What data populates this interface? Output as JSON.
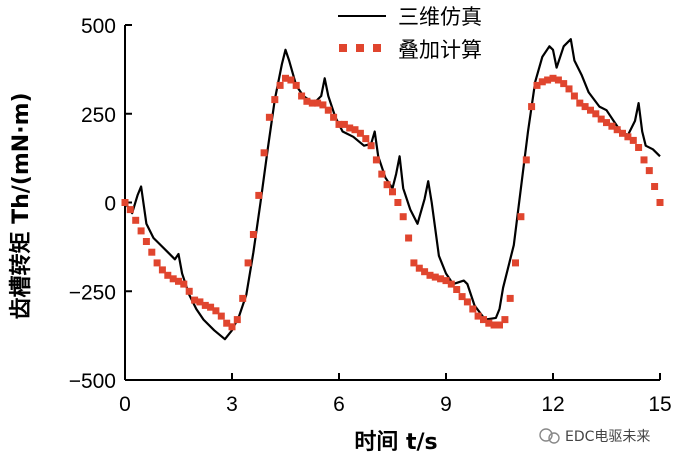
{
  "chart_data": {
    "type": "line",
    "xlabel": "时间 t/s",
    "ylabel": "齿槽转矩 Th/(mN·m)",
    "x_ticks": [
      "0",
      "3",
      "6",
      "9",
      "12",
      "15"
    ],
    "y_ticks": [
      "500",
      "250",
      "0",
      "−250",
      "−500"
    ],
    "xlim": [
      0,
      15
    ],
    "ylim": [
      -500,
      500
    ],
    "grid": false,
    "legend_position": "top-right",
    "series": [
      {
        "name": "三维仿真",
        "style": "line",
        "color": "#000000",
        "points": [
          [
            0.0,
            0
          ],
          [
            0.2,
            -30
          ],
          [
            0.35,
            20
          ],
          [
            0.45,
            45
          ],
          [
            0.6,
            -60
          ],
          [
            0.8,
            -100
          ],
          [
            1.0,
            -120
          ],
          [
            1.2,
            -140
          ],
          [
            1.4,
            -160
          ],
          [
            1.5,
            -145
          ],
          [
            1.6,
            -200
          ],
          [
            1.8,
            -260
          ],
          [
            2.0,
            -300
          ],
          [
            2.2,
            -330
          ],
          [
            2.5,
            -360
          ],
          [
            2.8,
            -385
          ],
          [
            3.0,
            -360
          ],
          [
            3.2,
            -320
          ],
          [
            3.4,
            -260
          ],
          [
            3.6,
            -140
          ],
          [
            3.8,
            0
          ],
          [
            4.0,
            150
          ],
          [
            4.2,
            290
          ],
          [
            4.4,
            390
          ],
          [
            4.5,
            430
          ],
          [
            4.6,
            400
          ],
          [
            4.8,
            330
          ],
          [
            5.0,
            300
          ],
          [
            5.3,
            280
          ],
          [
            5.5,
            300
          ],
          [
            5.6,
            350
          ],
          [
            5.7,
            300
          ],
          [
            5.9,
            240
          ],
          [
            6.1,
            200
          ],
          [
            6.4,
            185
          ],
          [
            6.7,
            160
          ],
          [
            6.9,
            165
          ],
          [
            7.0,
            200
          ],
          [
            7.1,
            130
          ],
          [
            7.3,
            70
          ],
          [
            7.5,
            40
          ],
          [
            7.6,
            80
          ],
          [
            7.7,
            130
          ],
          [
            7.8,
            40
          ],
          [
            8.0,
            -20
          ],
          [
            8.2,
            -60
          ],
          [
            8.4,
            10
          ],
          [
            8.5,
            60
          ],
          [
            8.6,
            0
          ],
          [
            8.8,
            -150
          ],
          [
            9.0,
            -200
          ],
          [
            9.2,
            -230
          ],
          [
            9.5,
            -220
          ],
          [
            9.6,
            -230
          ],
          [
            9.8,
            -290
          ],
          [
            10.1,
            -330
          ],
          [
            10.4,
            -325
          ],
          [
            10.5,
            -300
          ],
          [
            10.6,
            -240
          ],
          [
            10.9,
            -120
          ],
          [
            11.1,
            40
          ],
          [
            11.3,
            200
          ],
          [
            11.5,
            340
          ],
          [
            11.7,
            410
          ],
          [
            11.9,
            440
          ],
          [
            12.0,
            430
          ],
          [
            12.1,
            380
          ],
          [
            12.3,
            440
          ],
          [
            12.5,
            460
          ],
          [
            12.6,
            400
          ],
          [
            12.8,
            360
          ],
          [
            13.0,
            310
          ],
          [
            13.3,
            270
          ],
          [
            13.5,
            260
          ],
          [
            13.7,
            230
          ],
          [
            13.9,
            200
          ],
          [
            14.1,
            190
          ],
          [
            14.3,
            230
          ],
          [
            14.4,
            280
          ],
          [
            14.5,
            200
          ],
          [
            14.6,
            160
          ],
          [
            14.8,
            150
          ],
          [
            15.0,
            130
          ]
        ]
      },
      {
        "name": "叠加计算",
        "style": "marker",
        "color": "#e0452e",
        "points": [
          [
            0.0,
            0
          ],
          [
            0.15,
            -20
          ],
          [
            0.3,
            -50
          ],
          [
            0.45,
            -80
          ],
          [
            0.6,
            -110
          ],
          [
            0.75,
            -140
          ],
          [
            0.9,
            -170
          ],
          [
            1.05,
            -190
          ],
          [
            1.2,
            -205
          ],
          [
            1.35,
            -215
          ],
          [
            1.5,
            -222
          ],
          [
            1.65,
            -230
          ],
          [
            1.8,
            -250
          ],
          [
            1.95,
            -275
          ],
          [
            2.1,
            -280
          ],
          [
            2.25,
            -290
          ],
          [
            2.4,
            -295
          ],
          [
            2.55,
            -305
          ],
          [
            2.7,
            -320
          ],
          [
            2.85,
            -340
          ],
          [
            3.0,
            -350
          ],
          [
            3.15,
            -330
          ],
          [
            3.3,
            -270
          ],
          [
            3.45,
            -170
          ],
          [
            3.6,
            -90
          ],
          [
            3.75,
            20
          ],
          [
            3.9,
            140
          ],
          [
            4.05,
            240
          ],
          [
            4.2,
            290
          ],
          [
            4.35,
            330
          ],
          [
            4.5,
            350
          ],
          [
            4.65,
            345
          ],
          [
            4.8,
            330
          ],
          [
            4.95,
            300
          ],
          [
            5.1,
            285
          ],
          [
            5.25,
            280
          ],
          [
            5.4,
            280
          ],
          [
            5.55,
            275
          ],
          [
            5.7,
            260
          ],
          [
            5.85,
            240
          ],
          [
            6.0,
            220
          ],
          [
            6.15,
            220
          ],
          [
            6.3,
            210
          ],
          [
            6.45,
            205
          ],
          [
            6.6,
            195
          ],
          [
            6.75,
            180
          ],
          [
            6.9,
            160
          ],
          [
            7.05,
            120
          ],
          [
            7.2,
            80
          ],
          [
            7.35,
            50
          ],
          [
            7.5,
            30
          ],
          [
            7.65,
            0
          ],
          [
            7.8,
            -40
          ],
          [
            7.95,
            -100
          ],
          [
            8.1,
            -170
          ],
          [
            8.25,
            -185
          ],
          [
            8.4,
            -195
          ],
          [
            8.55,
            -205
          ],
          [
            8.7,
            -210
          ],
          [
            8.85,
            -215
          ],
          [
            9.0,
            -220
          ],
          [
            9.15,
            -230
          ],
          [
            9.3,
            -245
          ],
          [
            9.45,
            -265
          ],
          [
            9.6,
            -280
          ],
          [
            9.75,
            -300
          ],
          [
            9.9,
            -320
          ],
          [
            10.05,
            -330
          ],
          [
            10.2,
            -340
          ],
          [
            10.35,
            -345
          ],
          [
            10.5,
            -345
          ],
          [
            10.65,
            -330
          ],
          [
            10.8,
            -270
          ],
          [
            10.95,
            -170
          ],
          [
            11.1,
            -40
          ],
          [
            11.25,
            120
          ],
          [
            11.4,
            270
          ],
          [
            11.55,
            330
          ],
          [
            11.7,
            340
          ],
          [
            11.85,
            345
          ],
          [
            12.0,
            350
          ],
          [
            12.15,
            345
          ],
          [
            12.3,
            335
          ],
          [
            12.45,
            320
          ],
          [
            12.6,
            300
          ],
          [
            12.75,
            280
          ],
          [
            12.9,
            270
          ],
          [
            13.05,
            260
          ],
          [
            13.2,
            250
          ],
          [
            13.35,
            235
          ],
          [
            13.5,
            225
          ],
          [
            13.65,
            215
          ],
          [
            13.8,
            205
          ],
          [
            13.95,
            195
          ],
          [
            14.1,
            185
          ],
          [
            14.25,
            175
          ],
          [
            14.4,
            155
          ],
          [
            14.55,
            120
          ],
          [
            14.7,
            90
          ],
          [
            14.85,
            45
          ],
          [
            15.0,
            0
          ]
        ]
      }
    ]
  },
  "watermark": {
    "text": "EDC电驱未来",
    "icon": "wechat-icon"
  }
}
